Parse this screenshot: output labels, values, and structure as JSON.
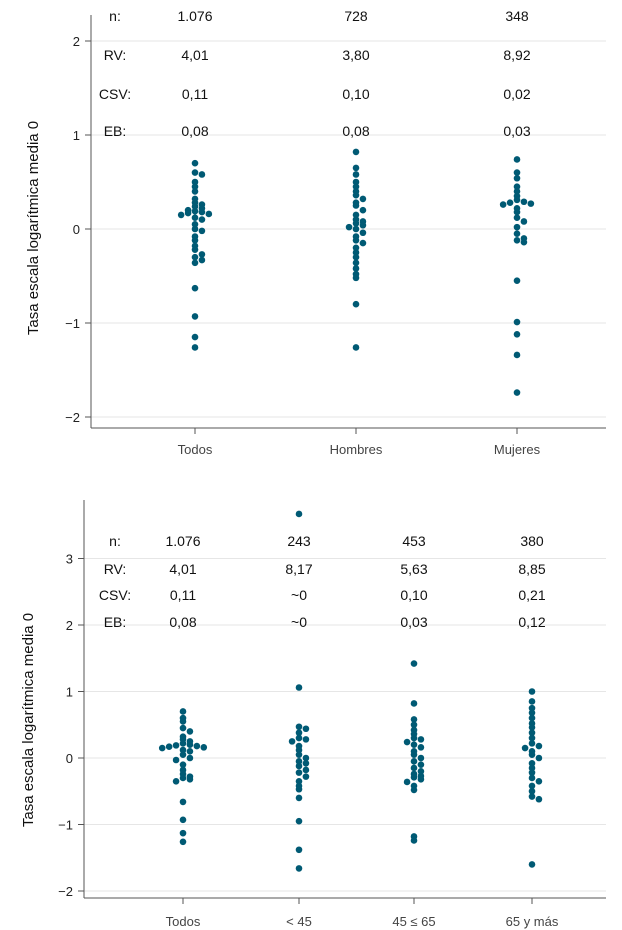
{
  "chart_data": [
    {
      "type": "scatter",
      "ylabel": "Tasa escala logarítmica media 0",
      "ylim": [
        -2.1,
        2.1
      ],
      "yticks": [
        -2,
        -1,
        0,
        1,
        2
      ],
      "ytick_labels": [
        "−2",
        "−1",
        "0",
        "1",
        "2"
      ],
      "categories": [
        "Todos",
        "Hombres",
        "Mujeres"
      ],
      "stat_labels": [
        "n:",
        "RV:",
        "CSV:",
        "EB:"
      ],
      "stats": [
        [
          "1.076",
          "4,01",
          "0,11",
          "0,08"
        ],
        [
          "728",
          "3,80",
          "0,10",
          "0,08"
        ],
        [
          "348",
          "8,92",
          "0,02",
          "0,03"
        ]
      ],
      "grid": true,
      "points": [
        [
          0.7,
          0.6,
          0.58,
          0.5,
          0.45,
          0.4,
          0.32,
          0.28,
          0.26,
          0.24,
          0.22,
          0.2,
          0.19,
          0.18,
          0.17,
          0.16,
          0.15,
          0.12,
          0.1,
          0.05,
          0.0,
          -0.02,
          -0.08,
          -0.12,
          -0.18,
          -0.22,
          -0.27,
          -0.3,
          -0.33,
          -0.36,
          -0.63,
          -0.93,
          -1.15,
          -1.26
        ],
        [
          0.82,
          0.65,
          0.58,
          0.5,
          0.45,
          0.4,
          0.36,
          0.32,
          0.28,
          0.25,
          0.2,
          0.15,
          0.1,
          0.08,
          0.06,
          0.04,
          0.02,
          0.0,
          -0.04,
          -0.08,
          -0.12,
          -0.15,
          -0.2,
          -0.25,
          -0.3,
          -0.36,
          -0.42,
          -0.48,
          -0.52,
          -0.8,
          -1.26
        ],
        [
          0.74,
          0.6,
          0.54,
          0.45,
          0.4,
          0.35,
          0.31,
          0.29,
          0.28,
          0.27,
          0.26,
          0.22,
          0.18,
          0.12,
          0.08,
          0.02,
          -0.05,
          -0.1,
          -0.12,
          -0.14,
          -0.55,
          -0.99,
          -1.12,
          -1.34,
          -1.74
        ]
      ],
      "color": "#005a74"
    },
    {
      "type": "scatter",
      "ylabel": "Tasa escala logarítmica media 0",
      "ylim": [
        -2.1,
        3.8
      ],
      "yticks": [
        -2,
        -1,
        0,
        1,
        2,
        3
      ],
      "ytick_labels": [
        "−2",
        "−1",
        "0",
        "1",
        "2",
        "3"
      ],
      "categories": [
        "Todos",
        "< 45",
        "45 ≤ 65",
        "65 y más"
      ],
      "stat_labels": [
        "n:",
        "RV:",
        "CSV:",
        "EB:"
      ],
      "stats": [
        [
          "1.076",
          "4,01",
          "0,11",
          "0,08"
        ],
        [
          "243",
          "8,17",
          "~0",
          "~0"
        ],
        [
          "453",
          "5,63",
          "0,10",
          "0,03"
        ],
        [
          "380",
          "8,85",
          "0,21",
          "0,12"
        ]
      ],
      "grid": true,
      "points": [
        [
          0.7,
          0.6,
          0.55,
          0.45,
          0.4,
          0.32,
          0.28,
          0.25,
          0.22,
          0.2,
          0.19,
          0.18,
          0.17,
          0.16,
          0.15,
          0.12,
          0.1,
          0.05,
          0.0,
          -0.03,
          -0.1,
          -0.18,
          -0.24,
          -0.28,
          -0.3,
          -0.32,
          -0.35,
          -0.66,
          -0.93,
          -1.13,
          -1.26
        ],
        [
          3.67,
          1.06,
          0.47,
          0.44,
          0.38,
          0.3,
          0.28,
          0.25,
          0.18,
          0.12,
          0.05,
          0.0,
          -0.05,
          -0.08,
          -0.12,
          -0.18,
          -0.22,
          -0.28,
          -0.35,
          -0.42,
          -0.47,
          -0.6,
          -0.95,
          -1.38,
          -1.66
        ],
        [
          1.42,
          0.82,
          0.58,
          0.5,
          0.42,
          0.36,
          0.3,
          0.28,
          0.24,
          0.2,
          0.16,
          0.1,
          0.05,
          0.0,
          -0.05,
          -0.1,
          -0.15,
          -0.2,
          -0.24,
          -0.27,
          -0.29,
          -0.32,
          -0.36,
          -0.42,
          -0.48,
          -1.18,
          -1.24
        ],
        [
          1.0,
          0.85,
          0.75,
          0.68,
          0.6,
          0.52,
          0.46,
          0.38,
          0.3,
          0.22,
          0.18,
          0.15,
          0.1,
          0.05,
          0.0,
          -0.08,
          -0.15,
          -0.22,
          -0.3,
          -0.35,
          -0.42,
          -0.5,
          -0.58,
          -0.62,
          -1.6
        ]
      ],
      "color": "#005a74"
    }
  ]
}
